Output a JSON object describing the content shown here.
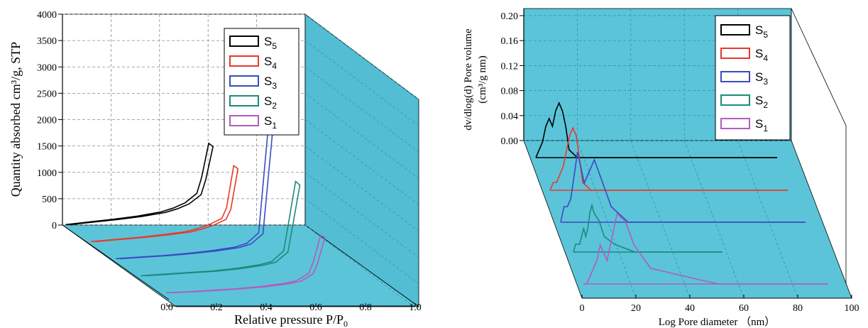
{
  "colors": {
    "S5": "#000000",
    "S4": "#e8392c",
    "S3": "#3a4bbf",
    "S2": "#1d8a7a",
    "S1": "#b25cc0",
    "panel": "#5bc4d9",
    "panel_side": "#52bdd3",
    "grid": "#8a8a8a"
  },
  "chart_data": [
    {
      "type": "line",
      "ylabel": "Quantity absorbed cm³/g, STP",
      "xlabel_main": "Relative pressure P/P",
      "xlabel_sub": "0",
      "xlim": [
        0,
        1.0
      ],
      "ylim": [
        0,
        4000
      ],
      "yticks": [
        "0",
        "500",
        "1000",
        "1500",
        "2000",
        "2500",
        "3000",
        "3500",
        "4000"
      ],
      "xticks": [
        "0.0",
        "0.2",
        "0.4",
        "0.6",
        "0.8",
        "1.0"
      ],
      "legend_position": "top-right",
      "series": [
        {
          "name": "S",
          "sub": "5",
          "key": "S5",
          "x": [
            0.0,
            0.1,
            0.2,
            0.3,
            0.4,
            0.45,
            0.5,
            0.55,
            0.57,
            0.6
          ],
          "y": [
            10,
            60,
            110,
            170,
            250,
            320,
            420,
            600,
            900,
            1550
          ]
        },
        {
          "name": "S",
          "sub": "4",
          "key": "S4",
          "x": [
            0.0,
            0.1,
            0.2,
            0.3,
            0.4,
            0.45,
            0.5,
            0.55,
            0.57,
            0.6
          ],
          "y": [
            10,
            50,
            90,
            140,
            200,
            260,
            340,
            450,
            650,
            1450
          ]
        },
        {
          "name": "S",
          "sub": "3",
          "key": "S3",
          "x": [
            0.0,
            0.1,
            0.2,
            0.3,
            0.4,
            0.5,
            0.55,
            0.6,
            0.62,
            0.65
          ],
          "y": [
            10,
            40,
            70,
            110,
            160,
            230,
            300,
            500,
            1500,
            3000
          ]
        },
        {
          "name": "S",
          "sub": "2",
          "key": "S2",
          "x": [
            0.0,
            0.1,
            0.2,
            0.3,
            0.4,
            0.5,
            0.55,
            0.6,
            0.62,
            0.65
          ],
          "y": [
            10,
            40,
            70,
            100,
            150,
            220,
            280,
            480,
            1000,
            1800
          ]
        },
        {
          "name": "S",
          "sub": "1",
          "key": "S1",
          "x": [
            0.0,
            0.1,
            0.2,
            0.3,
            0.4,
            0.5,
            0.55,
            0.6,
            0.62,
            0.65
          ],
          "y": [
            10,
            30,
            60,
            90,
            130,
            190,
            240,
            380,
            600,
            1100
          ]
        }
      ]
    },
    {
      "type": "line",
      "ylabel_line1": "dv/dlog(d) Pore volume",
      "ylabel_line2": "(cm³/g nm)",
      "xlabel": "Log Pore diameter （nm）",
      "xlim": [
        0,
        100
      ],
      "ylim": [
        0,
        0.2
      ],
      "yticks": [
        "0.00",
        "0.04",
        "0.08",
        "0.12",
        "0.16",
        "0.20"
      ],
      "xticks": [
        "0",
        "20",
        "40",
        "60",
        "80",
        "100"
      ],
      "legend_position": "top-right",
      "series": [
        {
          "name": "S",
          "sub": "5",
          "key": "S5",
          "x": [
            0,
            2,
            4,
            6,
            8,
            10,
            12,
            14,
            16,
            18,
            20,
            25,
            30,
            40,
            60,
            80
          ],
          "y": [
            0.0,
            0.01,
            0.02,
            0.04,
            0.05,
            0.04,
            0.06,
            0.07,
            0.06,
            0.04,
            0.01,
            0.0,
            0.0,
            0.0,
            0.0,
            0.0
          ]
        },
        {
          "name": "S",
          "sub": "4",
          "key": "S4",
          "x": [
            0,
            2,
            4,
            6,
            8,
            10,
            12,
            14,
            16,
            18,
            20,
            25,
            30,
            40,
            60,
            80
          ],
          "y": [
            0.0,
            0.01,
            0.01,
            0.02,
            0.03,
            0.05,
            0.07,
            0.08,
            0.07,
            0.04,
            0.01,
            0.0,
            0.0,
            0.0,
            0.0,
            0.0
          ]
        },
        {
          "name": "S",
          "sub": "3",
          "key": "S3",
          "x": [
            0,
            2,
            4,
            6,
            8,
            10,
            12,
            14,
            16,
            18,
            20,
            25,
            30,
            40,
            60,
            80
          ],
          "y": [
            0.0,
            0.02,
            0.02,
            0.03,
            0.06,
            0.09,
            0.07,
            0.05,
            0.06,
            0.07,
            0.08,
            0.05,
            0.02,
            0.0,
            0.0,
            0.0
          ]
        },
        {
          "name": "S",
          "sub": "2",
          "key": "S2",
          "x": [
            0,
            2,
            4,
            6,
            8,
            10,
            12,
            14,
            16,
            18,
            20,
            25,
            30,
            40,
            60,
            80
          ],
          "y": [
            0.0,
            0.01,
            0.01,
            0.01,
            0.02,
            0.03,
            0.02,
            0.03,
            0.05,
            0.06,
            0.05,
            0.04,
            0.02,
            0.01,
            0.0,
            0.0
          ]
        },
        {
          "name": "S",
          "sub": "1",
          "key": "S1",
          "x": [
            0,
            2,
            4,
            6,
            8,
            10,
            12,
            14,
            16,
            18,
            20,
            25,
            30,
            40,
            60,
            80
          ],
          "y": [
            0.0,
            0.0,
            0.01,
            0.02,
            0.03,
            0.05,
            0.04,
            0.03,
            0.05,
            0.07,
            0.09,
            0.08,
            0.05,
            0.02,
            0.01,
            0.0
          ]
        }
      ]
    }
  ]
}
